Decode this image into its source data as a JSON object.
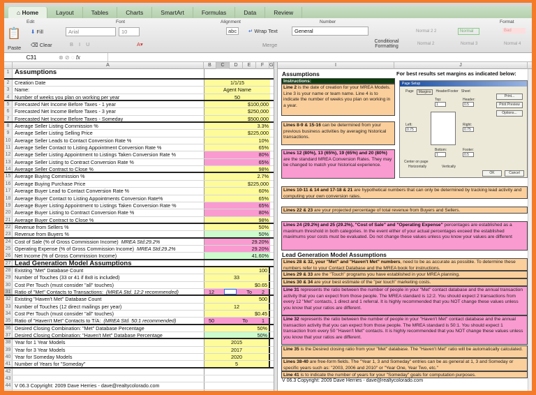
{
  "ribbon": {
    "tabs": [
      "Home",
      "Layout",
      "Tables",
      "Charts",
      "SmartArt",
      "Formulas",
      "Data",
      "Review"
    ],
    "groups": {
      "edit": "Edit",
      "font": "Font",
      "alignment": "Alignment",
      "number": "Number",
      "format": "Format"
    },
    "paste": "Paste",
    "fill": "Fill",
    "clear": "Clear",
    "font_name": "Arial",
    "font_size": "10",
    "wrap_text": "Wrap Text",
    "merge": "Merge",
    "abc": "abc",
    "number_format": "General",
    "conditional_formatting": "Conditional Formatting",
    "styles": [
      "Normal 2 2",
      "Normal",
      "Bad",
      "Normal 2",
      "Normal 3",
      "Normal 4"
    ]
  },
  "formula_bar": {
    "cell_ref": "C31",
    "fx": "fx",
    "value": ""
  },
  "columns": [
    "A",
    "B",
    "C",
    "D",
    "E",
    "F",
    "G",
    "H",
    "I",
    "J"
  ],
  "left": {
    "rows": [
      {
        "n": "1",
        "label": "Assumptions",
        "value": "",
        "cls": "",
        "header": true,
        "thick": true
      },
      {
        "n": "2",
        "label": "Creation Date",
        "value": "1/1/15",
        "cls": "y",
        "center": true
      },
      {
        "n": "3",
        "label": "Name:",
        "value": "Agent Name",
        "cls": "y",
        "center": true
      },
      {
        "n": "4",
        "label": "Number of weeks you plan on working per year",
        "value": "50",
        "cls": "y",
        "center": true,
        "thick": true
      },
      {
        "n": "5",
        "label": "Forecasted Net Income Before Taxes - 1 year",
        "value": "$100,000",
        "cls": "y"
      },
      {
        "n": "6",
        "label": "Forecasted Net Income Before Taxes - 3 year",
        "value": "$250,000",
        "cls": "y"
      },
      {
        "n": "7",
        "label": "Forecasted Net Income Before Taxes - Someday",
        "value": "$500,000",
        "cls": "y",
        "thick": true
      },
      {
        "n": "8",
        "label": "Average Seller Listing Commission %",
        "value": "3.3%",
        "cls": "y"
      },
      {
        "n": "9",
        "label": "Average Seller Listing Selling Price",
        "value": "$225,000",
        "cls": "y"
      },
      {
        "n": "10",
        "label": "Average Seller Leads to Contact Conversion Rate %",
        "value": "10%",
        "cls": "y"
      },
      {
        "n": "11",
        "label": "Average Seller Contact to Listing Appointment Conversion Rate %",
        "value": "65%",
        "cls": "y"
      },
      {
        "n": "12",
        "label": "Average Seller Listing Appointment to Listings Taken Conversion Rate %",
        "value": "80%",
        "cls": "p"
      },
      {
        "n": "13",
        "label": "Average Seller Listing to Contract Conversion Rate %",
        "value": "65%",
        "cls": "p"
      },
      {
        "n": "14",
        "label": "Average Seller Contract to Close %",
        "value": "98%",
        "cls": "y",
        "thick": true
      },
      {
        "n": "15",
        "label": "Average Buying Commission %",
        "value": "2.7%",
        "cls": "y"
      },
      {
        "n": "16",
        "label": "Average Buying Purchase Price",
        "value": "$225,000",
        "cls": "y"
      },
      {
        "n": "17",
        "label": "Average Buyer Lead to Contact Conversion Rate %",
        "value": "60%",
        "cls": "y"
      },
      {
        "n": "18",
        "label": "Average Buyer Contact to Listing Appointments Conversion Rate%",
        "value": "65%",
        "cls": "y"
      },
      {
        "n": "19",
        "label": "Average Buyer Listing Appointment to Listings Taken Conversion Rate %",
        "value": "65%",
        "cls": "p"
      },
      {
        "n": "20",
        "label": "Average Buyer Listing to Contract Conversion Rate %",
        "value": "80%",
        "cls": "p"
      },
      {
        "n": "21",
        "label": "Average Buyer Contract to Close %",
        "value": "98%",
        "cls": "y",
        "thick": true
      },
      {
        "n": "22",
        "label": "Revenue from Sellers %",
        "value": "50%",
        "cls": "y"
      },
      {
        "n": "23",
        "label": "Revenue from Buyers %",
        "value": "50%",
        "cls": "g",
        "thick": true
      },
      {
        "n": "24",
        "label": "Cost of Sale (% of Gross Commission Income)",
        "note": "MREA Std:29.2%",
        "value": "29.20%",
        "cls": "p"
      },
      {
        "n": "25",
        "label": "Operating Expense (% of Gross Commission Income)",
        "note": "MREA Std:29.2%",
        "value": "29.20%",
        "cls": "p"
      },
      {
        "n": "26",
        "label": "Net Income (% of Gross Commission Income)",
        "value": "41.60%",
        "cls": "g",
        "thick": true
      },
      {
        "n": "27",
        "label": "Lead Generation Model Assumptions",
        "value": "",
        "cls": "",
        "header": true,
        "thick": true
      },
      {
        "n": "28",
        "label": "Existing \"Met\" Database Count",
        "value": "100",
        "cls": "y"
      },
      {
        "n": "29",
        "label": "Number of Touches (33 or 41 if 8x8 is included)",
        "value": "33",
        "cls": "y",
        "center": true
      },
      {
        "n": "30",
        "label": "Cost Per Touch (must consider \"all\" touches)",
        "value": "$0.65",
        "cls": "y"
      },
      {
        "n": "31",
        "label": "Ratio of \"Met\" Contacts to Transactions:",
        "note": "(MREA Std. 12:2 recommended)",
        "parts": [
          "12",
          "",
          "To",
          "2"
        ],
        "cls": "p",
        "thick": true
      },
      {
        "n": "32",
        "label": "Existing \"Haven't Met\" Database Count",
        "value": "500",
        "cls": "y"
      },
      {
        "n": "33",
        "label": "Number of Touches (12 direct mailings per year)",
        "value": "12",
        "cls": "y",
        "center": true
      },
      {
        "n": "34",
        "label": "Cost Per Touch (must consider \"all\" touches)",
        "value": "$0.45",
        "cls": "y"
      },
      {
        "n": "35",
        "label": "Ratio of \"Haven't Met\" Contacts to T/A:",
        "note": "(MREA Std. 50:1 recommended)",
        "parts": [
          "50",
          "",
          "To",
          "1"
        ],
        "cls": "p",
        "thick": true
      },
      {
        "n": "36",
        "label": "Desired Closing Combination: \"Met\" Database Percentage",
        "value": "50%",
        "cls": "y"
      },
      {
        "n": "37",
        "label": "Desired Closing Combination: \"Haven't Met\" Database Percentage",
        "value": "50%",
        "cls": "g",
        "thick": true
      },
      {
        "n": "38",
        "label": "Year for 1 Year Models",
        "value": "2015",
        "cls": "y",
        "center": true
      },
      {
        "n": "39",
        "label": "Year for 3 Year Models",
        "value": "2017",
        "cls": "y",
        "center": true
      },
      {
        "n": "40",
        "label": "Year for Someday Models",
        "value": "2020",
        "cls": "y",
        "center": true
      },
      {
        "n": "41",
        "label": "Number of Years for \"Someday\"",
        "value": "5",
        "cls": "y",
        "center": true,
        "thick": true
      },
      {
        "n": "42",
        "label": "",
        "value": "",
        "cls": ""
      },
      {
        "n": "43",
        "label": "",
        "value": "",
        "cls": ""
      },
      {
        "n": "44",
        "label": "V 06.3 Copyright: 2009 Dave Herries - dave@realtycolorado.com",
        "value": "",
        "cls": ""
      },
      {
        "n": "45",
        "label": "",
        "value": "",
        "cls": ""
      },
      {
        "n": "46",
        "label": "",
        "value": "",
        "cls": ""
      }
    ]
  },
  "right": {
    "title": "Assumptions",
    "margins_note": "For best results set margins as indicated below:",
    "instructions_label": "Instructions:",
    "lead_gen_title": "Lead Generation Model Assumptions",
    "boxes": [
      {
        "bold": "Line 2",
        "text": " is the date of creation for your MREA Models. Line 3 is your name or team name. Line 4 is to indicate the number of weeks you plan on working in a year."
      },
      {
        "bold": "Lines 8-9 & 15-16",
        "text": " can be determined from your previous business activities by averaging historical transactions."
      },
      {
        "bold": "Lines 12 (80%), 13 (65%), 19 (65%) and 20 (80%)",
        "text": " are the standard MREA Conversion Rates. They may be changed to match your historical experience."
      },
      {
        "bold": "Lines 10-11 & 14 and 17-18 & 21",
        "text": " are hypothetical numbers that can only be determined by tracking lead activity and computing your own conversion rates."
      },
      {
        "bold": "Lines 22 & 23",
        "text": " are your projected percentage of total revenue from Buyers and Sellers."
      },
      {
        "bold": "Lines 24 (29.2%) and 25 (29.2%), \"Cost of Sale\" and \"Operating Expense\"",
        "text": " percentages are established as a maximum threshold in both categories. In the event either of your actual percentages exceed the established maximums your costs must be evaluated. Do not change these values unless you know your values are different"
      },
      {
        "bold": "Lines 28 & 32, your \"Met\" and \"Haven't Met\" numbers",
        "text": ", need to be as accurate as possible. To determine these numbers refer to your Contact Database and the MREA book for instructions."
      },
      {
        "bold": "Lines 29 & 33",
        "text": " are the \"Touch\" programs you have established in your MREA planning."
      },
      {
        "bold": "Lines 30 & 34",
        "text": " are your best estimate of the \"per touch\" marketing costs."
      },
      {
        "bold": "Line 31",
        "text": " represents the ratio between the number of people in your \"Met\" contact database and the annual transaction activity that you can expect from those people. The MREA standard is 12:2. You should expect 2 transactions from every 12 \"Met\" contacts, 1 direct and 1 referral. It is highly recommended that you NOT change these values unless you know that your ratios are different."
      },
      {
        "bold": "Line 32",
        "text": " represents the ratio between the number of people in your \"Haven't Met\" contact database and the annual transaction activity that you can expect from those people. The MREA standard is 50:1. You should expect 1 transaction from every 50 \"Haven't Met\" contacts. It is highly recommended that you NOT change these values unless you know that your ratios are different."
      },
      {
        "bold": "Line 35",
        "text": " is the Desired closing ratio from your \"Met\" database. The \"Haven't Met\" ratio will be automatically calculated."
      },
      {
        "bold": "Lines 38-40",
        "text": " are free-form fields. The \"Year 1, 3 and Someday\" entries can be as general at 1, 3 and Someday or specific years such as: \"2003, 2006 and 2010\" or \"Year One, Year Two, etc.\""
      },
      {
        "bold": "Line 41",
        "text": " is to indicate the number of years for your \"Someday\" goals for computation purposes."
      }
    ],
    "copyright": "V 06.3 Copyright: 2009 Dave Herries - dave@realtycolorado.com"
  },
  "page_setup": {
    "title": "Page Setup",
    "tabs": [
      "Page",
      "Margins",
      "Header/Footer",
      "Sheet"
    ],
    "top_label": "Top:",
    "top": "1",
    "header_label": "Header:",
    "header": "0.5",
    "left_label": "Left:",
    "left": "0.75",
    "right_label": "Right:",
    "right": "0.75",
    "bottom_label": "Bottom:",
    "bottom": "1",
    "footer_label": "Footer:",
    "footer": "0.5",
    "center_label": "Center on page",
    "horizontally": "Horizontally",
    "vertically": "Vertically",
    "print": "Print...",
    "print_preview": "Print Preview",
    "options": "Options...",
    "ok": "OK",
    "cancel": "Cancel"
  },
  "colors": {
    "yellow": "#fdfb9a",
    "pink": "#f99bd0",
    "green": "#ccfbcc",
    "orange": "#fbcf9c",
    "frame": "#f47b2a",
    "instructions_header": "#0b3d0b"
  }
}
